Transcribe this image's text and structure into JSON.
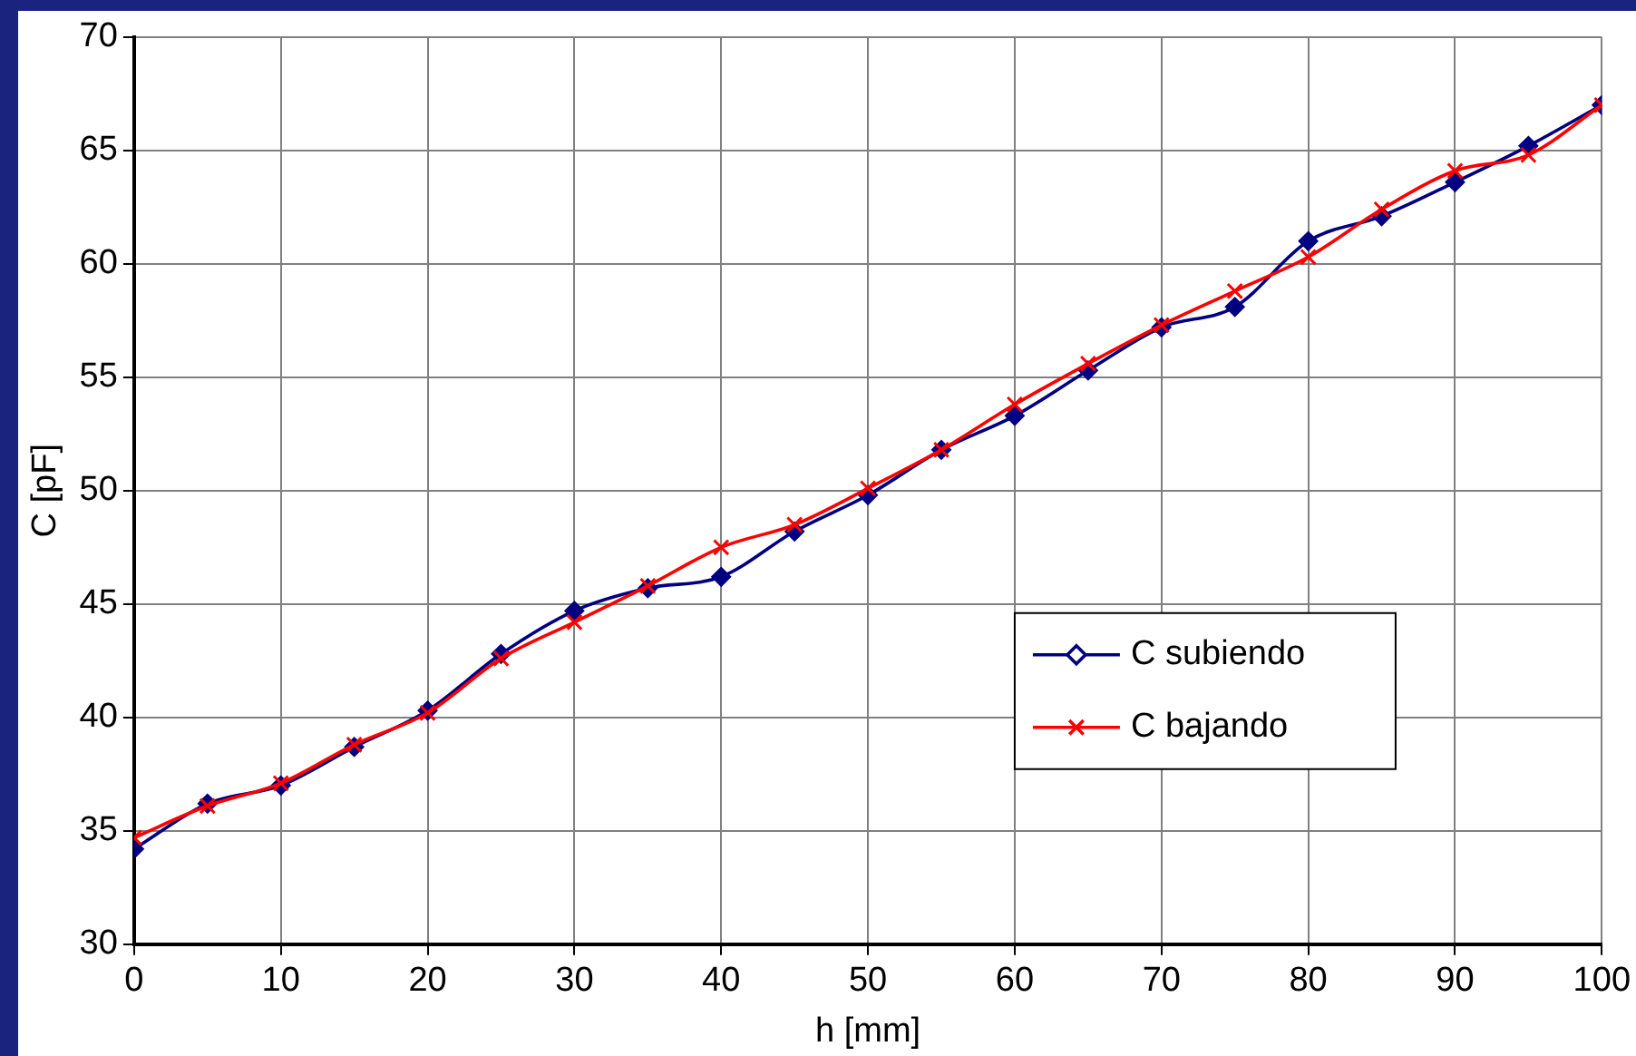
{
  "chart_data": {
    "type": "line",
    "xlabel": "h [mm]",
    "ylabel": "C [pF]",
    "x": [
      0,
      5,
      10,
      15,
      20,
      25,
      30,
      35,
      40,
      45,
      50,
      55,
      60,
      65,
      70,
      75,
      80,
      85,
      90,
      95,
      100
    ],
    "xlim": [
      0,
      100
    ],
    "xticks": [
      0,
      10,
      20,
      30,
      40,
      50,
      60,
      70,
      80,
      90,
      100
    ],
    "ylim": [
      30,
      70
    ],
    "yticks": [
      30,
      35,
      40,
      45,
      50,
      55,
      60,
      65,
      70
    ],
    "grid": true,
    "legend": "right",
    "series": [
      {
        "name": "C subiendo",
        "color": "#000080",
        "marker": "diamond",
        "values": [
          34.2,
          36.2,
          37.0,
          38.7,
          40.3,
          42.8,
          44.7,
          45.7,
          46.2,
          48.2,
          49.8,
          51.8,
          53.3,
          55.3,
          57.2,
          58.1,
          61.0,
          62.1,
          63.6,
          65.2,
          67.0
        ]
      },
      {
        "name": "C bajando",
        "color": "#ff0000",
        "marker": "cross",
        "values": [
          34.7,
          36.1,
          37.1,
          38.8,
          40.2,
          42.6,
          44.2,
          45.8,
          47.5,
          48.5,
          50.1,
          51.8,
          53.8,
          55.6,
          57.3,
          58.8,
          60.3,
          62.4,
          64.1,
          64.8,
          67.0
        ]
      }
    ]
  }
}
